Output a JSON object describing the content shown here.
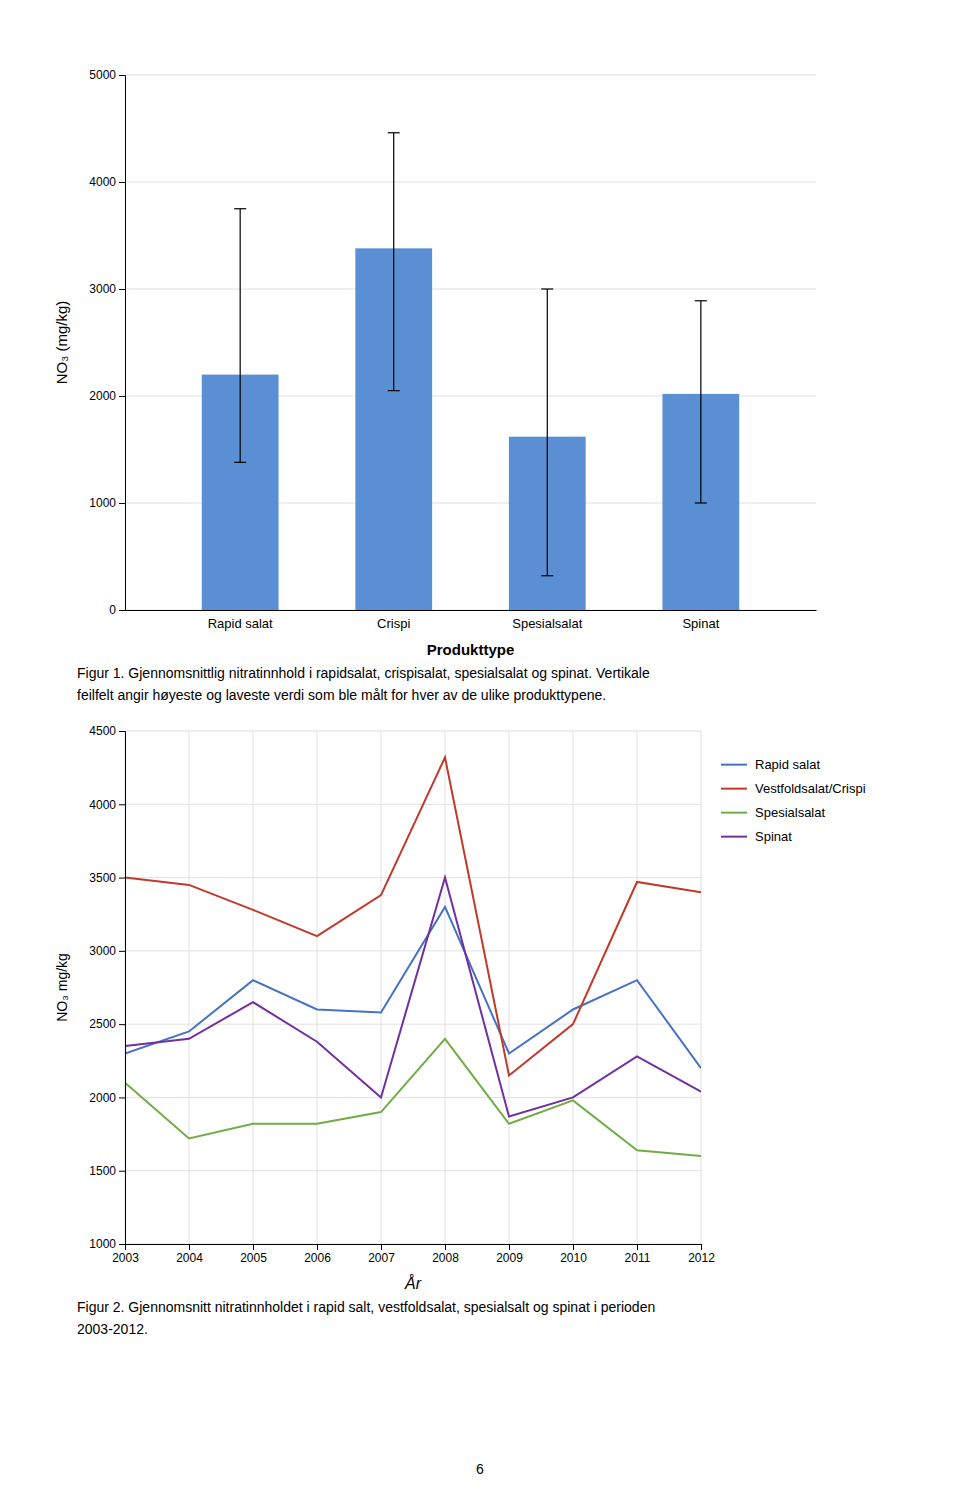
{
  "chart_data": [
    {
      "type": "bar",
      "categories": [
        "Rapid salat",
        "Crispi",
        "Spesialsalat",
        "Spinat"
      ],
      "values": [
        2200,
        3380,
        1620,
        2020
      ],
      "yerr_upper": [
        1550,
        1080,
        1380,
        870
      ],
      "yerr_lower": [
        820,
        1330,
        1300,
        1020
      ],
      "color": "#5b8fd4",
      "xlabel": "Produkttype",
      "ylabel": "NO₃ (mg/kg)",
      "ylim": [
        0,
        5000
      ],
      "yticks": [
        0,
        1000,
        2000,
        3000,
        4000,
        5000
      ],
      "grid": "y",
      "caption": [
        "Figur 1. Gjennomsnittlig nitratinnhold i rapidsalat, crispisalat, spesialsalat og spinat. Vertikale",
        "feilfelt angir høyeste og laveste verdi som ble målt for hver av de ulike produkttypene."
      ]
    },
    {
      "type": "line",
      "x": [
        2003,
        2004,
        2005,
        2006,
        2007,
        2008,
        2009,
        2010,
        2011,
        2012
      ],
      "series": [
        {
          "name": "Rapid salat",
          "color": "#4472c4",
          "values": [
            2300,
            2450,
            2800,
            2600,
            2580,
            3300,
            2300,
            2600,
            2800,
            2200
          ]
        },
        {
          "name": "Vestfoldsalat/Crispi",
          "color": "#c0392b",
          "values": [
            3500,
            3450,
            3280,
            3100,
            3380,
            4320,
            2150,
            2500,
            3470,
            3400
          ]
        },
        {
          "name": "Spesialsalat",
          "color": "#70ad47",
          "values": [
            2100,
            1720,
            1820,
            1820,
            1900,
            2400,
            1820,
            1980,
            1640,
            1600
          ]
        },
        {
          "name": "Spinat",
          "color": "#7030a0",
          "values": [
            2350,
            2400,
            2650,
            2380,
            2000,
            3500,
            1870,
            2000,
            2280,
            2040
          ]
        }
      ],
      "xlabel": "År",
      "ylabel": "NO₃ mg/kg",
      "xlim": [
        2003,
        2012
      ],
      "xticks": [
        2003,
        2004,
        2005,
        2006,
        2007,
        2008,
        2009,
        2010,
        2011,
        2012
      ],
      "ylim": [
        1000,
        4500
      ],
      "yticks": [
        1000,
        1500,
        2000,
        2500,
        3000,
        3500,
        4000,
        4500
      ],
      "grid": true,
      "legend": "right",
      "caption": [
        "Figur 2. Gjennomsnitt nitratinnholdet i rapid salt, vestfoldsalat, spesialsalt og spinat i perioden",
        "2003-2012."
      ]
    }
  ],
  "page_number": "6"
}
